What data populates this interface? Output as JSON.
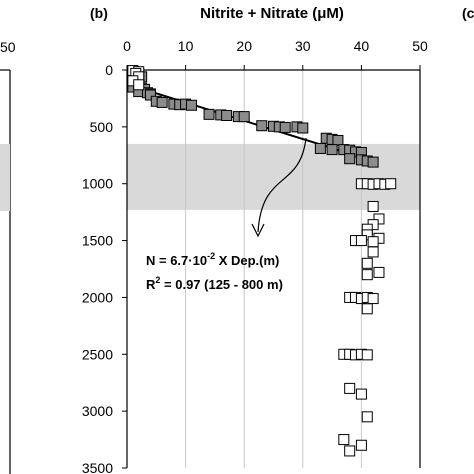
{
  "panel_label": "(b)",
  "right_panel_label": "(c",
  "left_panel_tick": "50",
  "chart_data": {
    "type": "scatter",
    "title": "Nitrite + Nitrate (μM)",
    "xlim": [
      0,
      50
    ],
    "ylim": [
      0,
      3500
    ],
    "y_reversed": true,
    "x_ticks": [
      0,
      10,
      20,
      30,
      40,
      50
    ],
    "y_ticks": [
      0,
      500,
      1000,
      1500,
      2000,
      2500,
      3000,
      3500
    ],
    "grid": "vertical",
    "shaded_depth_range": [
      650,
      1230
    ],
    "series": [
      {
        "style": "filled-gray-square",
        "points": [
          [
            1,
            10
          ],
          [
            1.5,
            20
          ],
          [
            2,
            35
          ],
          [
            1,
            50
          ],
          [
            2.5,
            60
          ],
          [
            1.2,
            80
          ],
          [
            2,
            100
          ],
          [
            1.5,
            120
          ],
          [
            1,
            150
          ],
          [
            2.5,
            160
          ],
          [
            3,
            170
          ],
          [
            2,
            190
          ],
          [
            3.5,
            200
          ],
          [
            4,
            210
          ],
          [
            4,
            220
          ],
          [
            5,
            275
          ],
          [
            6,
            285
          ],
          [
            8,
            300
          ],
          [
            9,
            305
          ],
          [
            10,
            300
          ],
          [
            11,
            310
          ],
          [
            14,
            390
          ],
          [
            16,
            395
          ],
          [
            17,
            400
          ],
          [
            19,
            410
          ],
          [
            20,
            410
          ],
          [
            23,
            490
          ],
          [
            25,
            495
          ],
          [
            26,
            500
          ],
          [
            27,
            505
          ],
          [
            29,
            500
          ],
          [
            30,
            510
          ],
          [
            34,
            600
          ],
          [
            35,
            610
          ],
          [
            36,
            620
          ],
          [
            33,
            690
          ],
          [
            35,
            700
          ],
          [
            37,
            700
          ],
          [
            38,
            705
          ],
          [
            39,
            720
          ],
          [
            40,
            725
          ],
          [
            38,
            780
          ],
          [
            40,
            790
          ],
          [
            41,
            800
          ],
          [
            42,
            810
          ]
        ]
      },
      {
        "style": "open-square",
        "points": [
          [
            1,
            5
          ],
          [
            2,
            15
          ],
          [
            1.5,
            30
          ],
          [
            2,
            60
          ],
          [
            1,
            95
          ],
          [
            2,
            130
          ],
          [
            40,
            1000
          ],
          [
            41,
            1000
          ],
          [
            42,
            1005
          ],
          [
            43,
            1000
          ],
          [
            44,
            1005
          ],
          [
            45,
            1000
          ],
          [
            42,
            1200
          ],
          [
            43,
            1310
          ],
          [
            42,
            1360
          ],
          [
            41,
            1400
          ],
          [
            41,
            1450
          ],
          [
            43,
            1480
          ],
          [
            39,
            1500
          ],
          [
            40,
            1500
          ],
          [
            42,
            1510
          ],
          [
            42,
            1600
          ],
          [
            41,
            1700
          ],
          [
            43,
            1780
          ],
          [
            41,
            1800
          ],
          [
            38,
            2000
          ],
          [
            39,
            2000
          ],
          [
            40,
            2010
          ],
          [
            41,
            2000
          ],
          [
            42,
            2010
          ],
          [
            41,
            2100
          ],
          [
            37,
            2500
          ],
          [
            38,
            2500
          ],
          [
            39,
            2505
          ],
          [
            40,
            2500
          ],
          [
            41,
            2505
          ],
          [
            38,
            2800
          ],
          [
            40,
            2850
          ],
          [
            41,
            3050
          ],
          [
            37,
            3250
          ],
          [
            38,
            3350
          ],
          [
            40,
            3300
          ]
        ]
      }
    ],
    "regression_line": {
      "from": [
        0,
        125
      ],
      "to": [
        42,
        800
      ]
    },
    "annotation": {
      "line1": "N = 6.7·10",
      "line1_exponent": "-2",
      "line1_tail": " X Dep.(m)",
      "line2_prefix": "R",
      "line2_exponent": "2",
      "line2_tail": " = 0.97 (125 - 800 m)"
    }
  }
}
